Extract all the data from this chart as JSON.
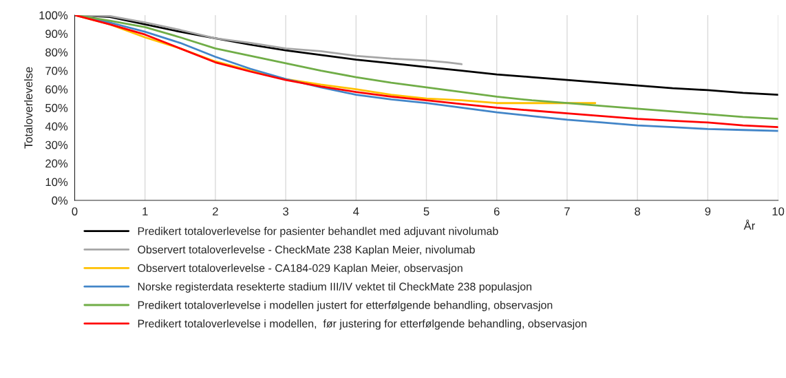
{
  "chart_data": {
    "type": "line",
    "xlabel": "År",
    "ylabel": "Totaloverlevelse",
    "xlim": [
      0,
      10
    ],
    "xticks": [
      0,
      1,
      2,
      3,
      4,
      5,
      6,
      7,
      8,
      9,
      10
    ],
    "ylim": [
      0,
      100
    ],
    "yticks": [
      {
        "value": 0,
        "label": "0%"
      },
      {
        "value": 10,
        "label": "10%"
      },
      {
        "value": 20,
        "label": "20%"
      },
      {
        "value": 30,
        "label": "30%"
      },
      {
        "value": 40,
        "label": "40%"
      },
      {
        "value": 50,
        "label": "50%"
      },
      {
        "value": 60,
        "label": "60%"
      },
      {
        "value": 70,
        "label": "70%"
      },
      {
        "value": 80,
        "label": "80%"
      },
      {
        "value": 90,
        "label": "90%"
      },
      {
        "value": 100,
        "label": "100%"
      }
    ],
    "grid": "x",
    "legend": "bottom",
    "marker": "none",
    "line_style": "solid",
    "series": [
      {
        "name": "Predikert totaloverlevelse for pasienter behandlet med adjuvant nivolumab",
        "color": "#000000",
        "x": [
          0,
          0.5,
          1,
          1.5,
          2,
          2.5,
          3,
          3.5,
          4,
          4.5,
          5,
          5.5,
          6,
          6.5,
          7,
          7.5,
          8,
          8.5,
          9,
          9.5,
          10
        ],
        "values": [
          100,
          99,
          95,
          91,
          87.5,
          84,
          81,
          78.5,
          76,
          74,
          72,
          70,
          68,
          66.5,
          65,
          63.5,
          62,
          60.5,
          59.5,
          58,
          57
        ]
      },
      {
        "name": "Observert totaloverlevelse - CheckMate 238 Kaplan Meier, nivolumab",
        "color": "#a6a6a6",
        "x": [
          0,
          0.5,
          1,
          1.5,
          2,
          2.5,
          3,
          3.5,
          4,
          4.5,
          5,
          5.3,
          5.5
        ],
        "values": [
          100,
          99.5,
          96,
          92,
          87.5,
          85,
          82,
          80.5,
          78,
          76.5,
          75.5,
          74.5,
          73.5
        ]
      },
      {
        "name": "Observert totaloverlevelse - CA184-029 Kaplan Meier, observasjon",
        "color": "#ffc000",
        "x": [
          0,
          0.5,
          1,
          1.5,
          2,
          2.5,
          3,
          3.5,
          4,
          4.5,
          5,
          5.5,
          6,
          6.5,
          7,
          7.4
        ],
        "values": [
          100,
          95,
          88,
          82,
          75,
          70,
          65.5,
          62.5,
          60,
          57,
          55,
          54,
          52.5,
          52.5,
          52.5,
          52.5
        ]
      },
      {
        "name": "Norske registerdata resekterte stadium III/IV vektet til CheckMate 238 populasjon",
        "color": "#4285c8",
        "x": [
          0,
          0.5,
          1,
          1.5,
          2,
          2.5,
          3,
          3.5,
          4,
          4.5,
          5,
          5.5,
          6,
          6.5,
          7,
          7.5,
          8,
          8.5,
          9,
          9.5,
          10
        ],
        "values": [
          100,
          96,
          91,
          85,
          77.5,
          71,
          65.5,
          61,
          57,
          54.5,
          52.5,
          50,
          47.5,
          45.5,
          43.5,
          42,
          40.5,
          39.5,
          38.5,
          38,
          37.5
        ]
      },
      {
        "name": "Predikert totaloverlevelse i modellen justert for etterfølgende behandling, observasjon",
        "color": "#70ad47",
        "x": [
          0,
          0.5,
          1,
          1.5,
          2,
          2.5,
          3,
          3.5,
          4,
          4.5,
          5,
          5.5,
          6,
          6.5,
          7,
          7.5,
          8,
          8.5,
          9,
          9.5,
          10
        ],
        "values": [
          100,
          97,
          93.5,
          88,
          82,
          78,
          74,
          70,
          66.5,
          63.5,
          61,
          58.5,
          56,
          54,
          52.5,
          51,
          49.5,
          48,
          46.5,
          45,
          44
        ]
      },
      {
        "name": "Predikert totaloverlevelse i modellen,  før justering for etterfølgende behandling, observasjon",
        "color": "#ff0000",
        "x": [
          0,
          0.5,
          1,
          1.5,
          2,
          2.5,
          3,
          3.5,
          4,
          4.5,
          5,
          5.5,
          6,
          6.5,
          7,
          7.5,
          8,
          8.5,
          9,
          9.5,
          10
        ],
        "values": [
          100,
          95,
          89.5,
          82,
          74.5,
          69.5,
          65,
          61.5,
          58.5,
          56,
          54,
          52,
          50,
          48.5,
          47,
          45.5,
          44,
          43,
          42,
          40.5,
          39.5
        ]
      }
    ]
  }
}
